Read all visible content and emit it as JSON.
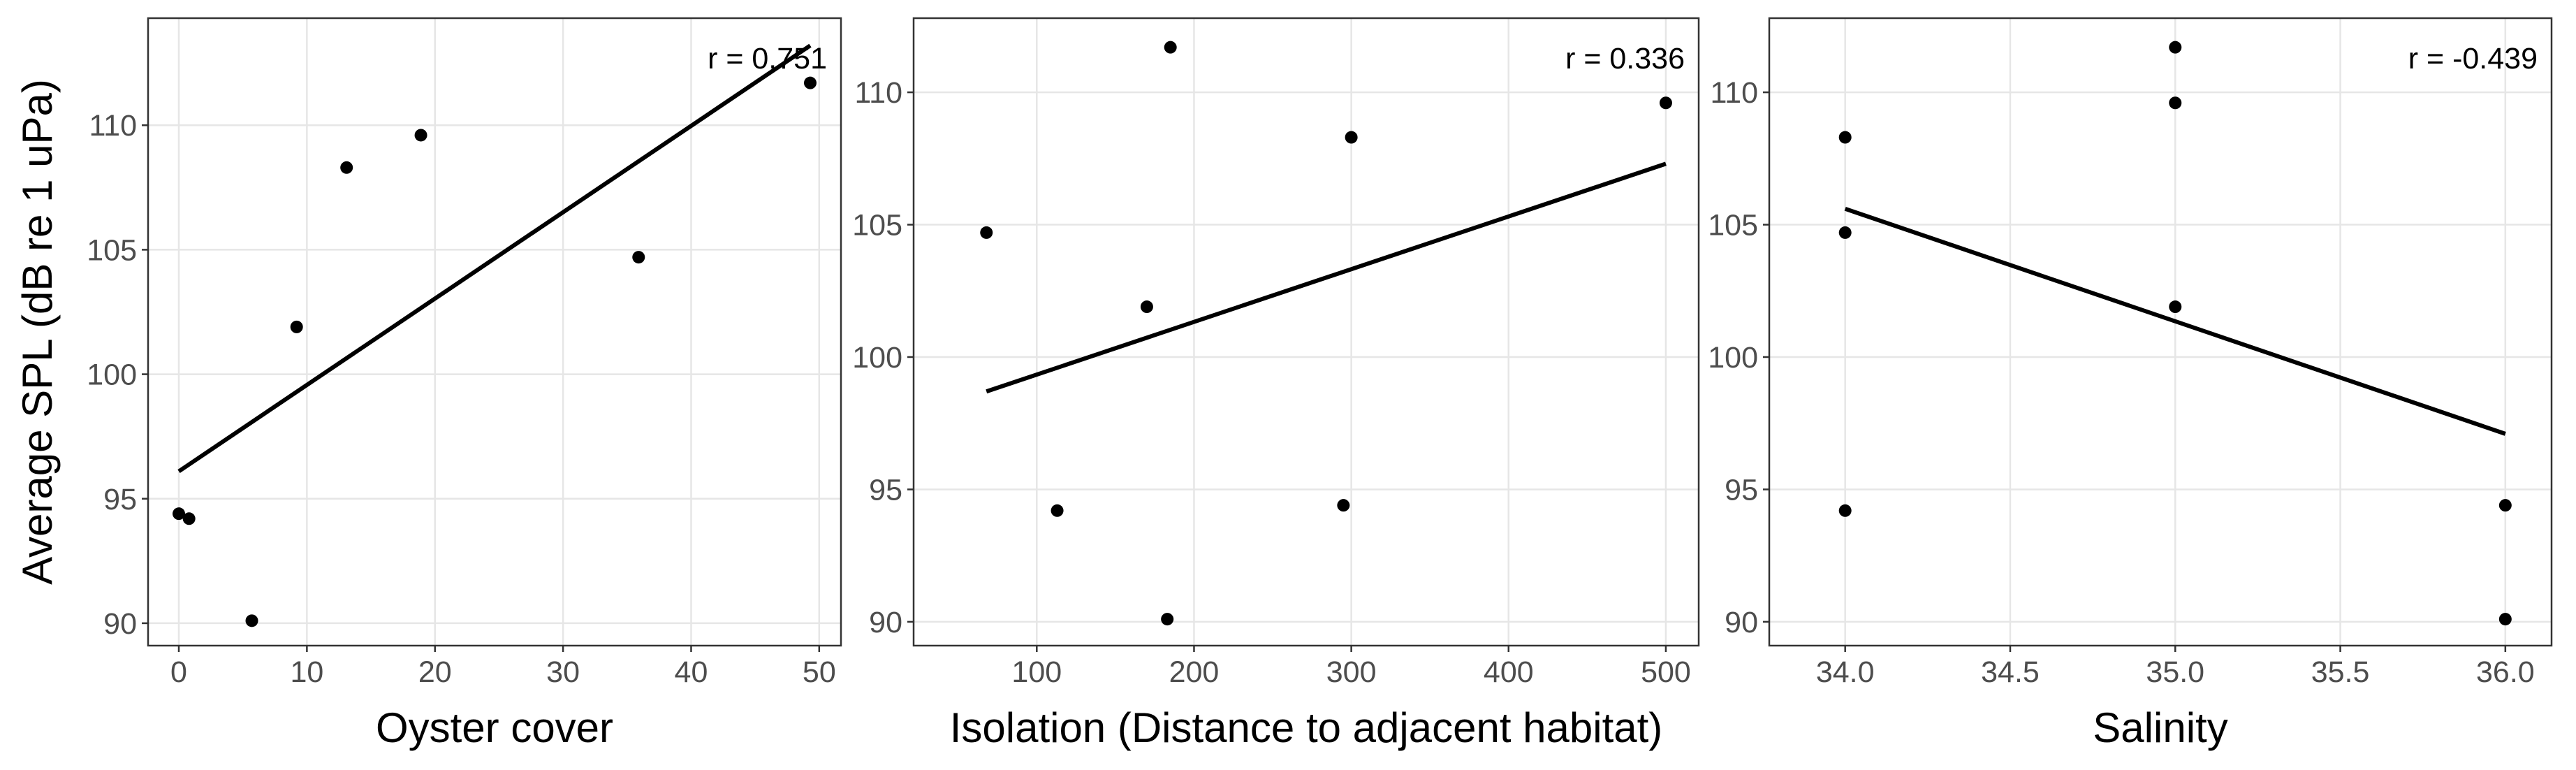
{
  "chart_data": [
    {
      "type": "scatter",
      "y_label": "Average SPL (dB re 1 uPa)",
      "x_label": "Oyster cover",
      "annotation": "r = 0.751",
      "x": [
        0,
        0.8,
        5.7,
        9.2,
        13.1,
        18.9,
        35.9,
        49.3
      ],
      "y": [
        94.4,
        94.2,
        90.1,
        101.9,
        108.3,
        109.6,
        104.7,
        111.7
      ],
      "fit": {
        "x": [
          0,
          49.3
        ],
        "y": [
          96.1,
          113.2
        ]
      },
      "color": "#000000",
      "xlim": [
        -2.4,
        51.7
      ],
      "ylim": [
        89.1,
        114.3
      ],
      "xticks": [
        0,
        10,
        20,
        30,
        40,
        50
      ],
      "yticks": [
        90,
        95,
        100,
        105,
        110
      ],
      "grid": true
    },
    {
      "type": "scatter",
      "x_label": "Isolation (Distance to adjacent habitat)",
      "annotation": "r = 0.336",
      "x": [
        68,
        113,
        170,
        183,
        185,
        295,
        300,
        500
      ],
      "y": [
        104.7,
        94.2,
        101.9,
        90.1,
        111.7,
        94.4,
        108.3,
        109.6
      ],
      "fit": {
        "x": [
          68,
          500
        ],
        "y": [
          98.7,
          107.3
        ]
      },
      "color": "#000000",
      "xlim": [
        21.7,
        520.9
      ],
      "ylim": [
        89.1,
        112.8
      ],
      "xticks": [
        100,
        200,
        300,
        400,
        500
      ],
      "yticks": [
        90,
        95,
        100,
        105,
        110
      ],
      "grid": true
    },
    {
      "type": "scatter",
      "x_label": "Salinity",
      "annotation": "r = -0.439",
      "x": [
        34,
        34,
        34,
        35,
        35,
        35,
        36,
        36
      ],
      "y": [
        108.3,
        104.7,
        94.2,
        111.7,
        109.6,
        101.9,
        94.4,
        90.1
      ],
      "fit": {
        "x": [
          34,
          36
        ],
        "y": [
          105.6,
          97.1
        ]
      },
      "color": "#000000",
      "xlim": [
        33.77,
        36.14
      ],
      "ylim": [
        89.1,
        112.8
      ],
      "xticks": [
        {
          "value": 34,
          "label": "34.0"
        },
        {
          "value": 34.5,
          "label": "34.5"
        },
        {
          "value": 35,
          "label": "35.0"
        },
        {
          "value": 35.5,
          "label": "35.5"
        },
        {
          "value": 36,
          "label": "36.0"
        }
      ],
      "yticks": [
        90,
        95,
        100,
        105,
        110
      ],
      "grid": true
    }
  ]
}
